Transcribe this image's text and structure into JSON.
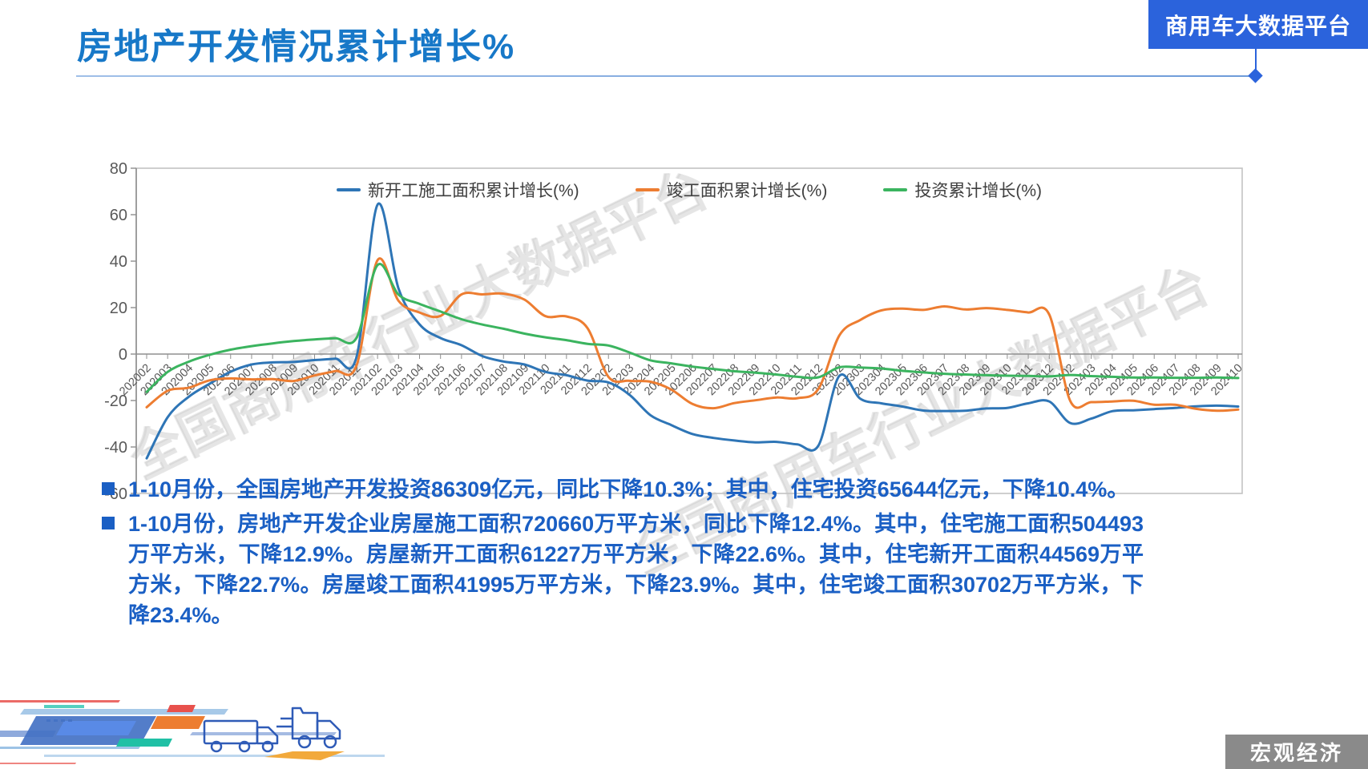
{
  "header": {
    "title": "房地产开发情况累计增长%",
    "badge": "商用车大数据平台"
  },
  "watermark": "全国商用车行业大数据平台",
  "colors": {
    "title_blue": "#1778C8",
    "badge_blue": "#2B63DC",
    "bullet_blue": "#1A5FC4",
    "axis_gray": "#8F8F8F",
    "tag_gray": "#8A8A8A"
  },
  "chart_data": {
    "type": "line",
    "title": "",
    "xlabel": "",
    "ylabel": "",
    "ylim": [
      -60,
      80
    ],
    "yticks": [
      80,
      60,
      40,
      20,
      0,
      -20,
      -40,
      -60
    ],
    "grid": false,
    "legend_position": "top-center",
    "categories": [
      "202002",
      "202003",
      "202004",
      "202005",
      "202006",
      "202007",
      "202008",
      "202009",
      "202010",
      "202011",
      "202012",
      "202102",
      "202103",
      "202104",
      "202105",
      "202106",
      "202107",
      "202108",
      "202109",
      "202110",
      "202111",
      "202112",
      "202202",
      "202203",
      "202204",
      "202205",
      "202206",
      "202207",
      "202208",
      "202209",
      "202210",
      "202211",
      "202212",
      "202302",
      "202303",
      "202304",
      "202305",
      "202306",
      "202307",
      "202308",
      "202309",
      "202310",
      "202311",
      "202312",
      "202402",
      "202403",
      "202404",
      "202405",
      "202406",
      "202407",
      "202408",
      "202409",
      "202410"
    ],
    "series": [
      {
        "name": "新开工施工面积累计增长(%)",
        "color": "#2E75B6",
        "values": [
          -44.9,
          -27.2,
          -18.4,
          -12.8,
          -7.6,
          -4.5,
          -3.6,
          -3.4,
          -2.6,
          -2.0,
          -1.2,
          64.3,
          28.2,
          12.8,
          6.9,
          3.8,
          -0.9,
          -3.2,
          -4.5,
          -7.7,
          -9.1,
          -11.4,
          -12.2,
          -17.5,
          -26.3,
          -30.6,
          -34.4,
          -36.1,
          -37.2,
          -38.0,
          -37.8,
          -38.9,
          -39.4,
          -9.4,
          -19.2,
          -21.2,
          -22.6,
          -24.3,
          -24.5,
          -24.4,
          -23.4,
          -23.2,
          -21.2,
          -20.4,
          -29.7,
          -27.8,
          -24.6,
          -24.2,
          -23.7,
          -23.2,
          -22.5,
          -22.2,
          -22.6
        ]
      },
      {
        "name": "竣工面积累计增长(%)",
        "color": "#ED7D31",
        "values": [
          -22.9,
          -15.8,
          -14.5,
          -11.3,
          -10.5,
          -10.9,
          -10.8,
          -11.6,
          -9.2,
          -7.3,
          -4.9,
          40.4,
          22.9,
          17.9,
          16.4,
          25.7,
          25.7,
          26.0,
          23.4,
          16.3,
          16.2,
          11.2,
          -9.8,
          -11.5,
          -11.9,
          -15.3,
          -21.5,
          -23.3,
          -21.1,
          -19.9,
          -18.7,
          -19.0,
          -15.0,
          8.0,
          14.7,
          18.8,
          19.6,
          19.0,
          20.5,
          19.2,
          19.8,
          19.0,
          17.9,
          17.0,
          -20.2,
          -20.7,
          -20.4,
          -20.1,
          -21.8,
          -21.8,
          -23.6,
          -24.4,
          -23.9
        ]
      },
      {
        "name": "投资累计增长(%)",
        "color": "#3BB45F",
        "values": [
          -16.3,
          -7.7,
          -3.3,
          -0.3,
          1.9,
          3.4,
          4.6,
          5.6,
          6.3,
          6.8,
          7.0,
          38.3,
          25.6,
          21.6,
          18.3,
          15.0,
          12.7,
          10.9,
          8.8,
          7.2,
          6.0,
          4.4,
          3.7,
          0.7,
          -2.7,
          -4.0,
          -5.4,
          -6.4,
          -7.4,
          -8.0,
          -8.8,
          -9.8,
          -10.0,
          -5.7,
          -5.8,
          -6.2,
          -7.2,
          -7.9,
          -8.5,
          -8.8,
          -9.1,
          -9.3,
          -9.4,
          -9.6,
          -9.0,
          -9.5,
          -9.8,
          -10.1,
          -10.1,
          -10.2,
          -10.2,
          -10.1,
          -10.3
        ]
      }
    ]
  },
  "bullets": [
    "1-10月份，全国房地产开发投资86309亿元，同比下降10.3%；其中，住宅投资65644亿元，下降10.4%。",
    "1-10月份，房地产开发企业房屋施工面积720660万平方米，同比下降12.4%。其中，住宅施工面积504493万平方米，下降12.9%。房屋新开工面积61227万平方米，下降22.6%。其中，住宅新开工面积44569万平方米，下降22.7%。房屋竣工面积41995万平方米，下降23.9%。其中，住宅竣工面积30702万平方米，下降23.4%。"
  ],
  "footer": {
    "tag": "宏观经济"
  }
}
